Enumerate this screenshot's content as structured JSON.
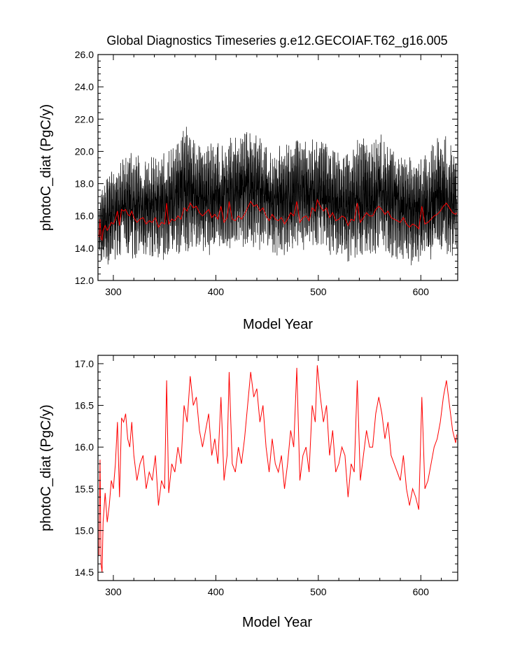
{
  "figure": {
    "title": "Global Diagnostics Timeseries g.e12.GECOIAF.T62_g16.005"
  },
  "colors": {
    "monthly": "#000000",
    "annual": "#ff0000",
    "axis": "#000000"
  },
  "chart_data": [
    {
      "type": "line",
      "title": "Global Diagnostics Timeseries g.e12.GECOIAF.T62_g16.005",
      "xlabel": "Model Year",
      "ylabel": "photoC_diat (PgC/y)",
      "xlim": [
        285,
        636
      ],
      "ylim": [
        12.0,
        26.0
      ],
      "xticks": [
        300,
        400,
        500,
        600
      ],
      "xtick_labels": [
        "300",
        "400",
        "500",
        "600"
      ],
      "yticks": [
        12.0,
        14.0,
        16.0,
        18.0,
        20.0,
        22.0,
        24.0,
        26.0
      ],
      "ytick_labels": [
        "12.0",
        "14.0",
        "16.0",
        "18.0",
        "20.0",
        "22.0",
        "24.0",
        "26.0"
      ],
      "grid": false,
      "legend": "none",
      "series": [
        {
          "style": "monthly seasonal cycle, black",
          "x": [
            286,
            290,
            295,
            300,
            305,
            310,
            315,
            320,
            325,
            330,
            335,
            340,
            345,
            350,
            355,
            360,
            365,
            370,
            375,
            380,
            385,
            390,
            395,
            400,
            405,
            410,
            415,
            420,
            425,
            430,
            435,
            440,
            445,
            450,
            455,
            460,
            465,
            470,
            475,
            480,
            485,
            490,
            495,
            500,
            505,
            510,
            515,
            520,
            525,
            530,
            535,
            540,
            545,
            550,
            555,
            560,
            565,
            570,
            575,
            580,
            585,
            590,
            595,
            600,
            605,
            610,
            615,
            620,
            625,
            630,
            635
          ],
          "y_min": [
            12.8,
            12.7,
            13.0,
            13.2,
            13.3,
            13.4,
            13.3,
            13.2,
            13.4,
            13.1,
            13.0,
            13.3,
            13.4,
            13.2,
            13.3,
            13.4,
            13.6,
            13.5,
            13.8,
            13.7,
            13.6,
            13.5,
            13.6,
            13.8,
            13.7,
            13.6,
            13.5,
            13.7,
            13.8,
            13.9,
            13.8,
            13.7,
            13.6,
            13.7,
            13.5,
            13.4,
            13.6,
            13.5,
            13.7,
            13.8,
            13.6,
            13.7,
            13.8,
            13.9,
            13.7,
            13.6,
            13.5,
            13.4,
            13.2,
            13.1,
            13.3,
            13.4,
            13.5,
            13.3,
            13.4,
            13.6,
            13.5,
            13.3,
            13.2,
            13.1,
            12.9,
            12.8,
            12.9,
            12.9,
            13.1,
            13.0,
            13.2,
            13.4,
            13.5,
            13.3,
            13.6
          ],
          "y_max": [
            17.0,
            18.2,
            18.6,
            19.0,
            19.4,
            19.6,
            20.1,
            20.0,
            19.8,
            19.6,
            20.0,
            19.9,
            19.8,
            20.2,
            20.4,
            20.8,
            21.1,
            21.7,
            21.2,
            20.9,
            20.6,
            20.4,
            20.5,
            20.6,
            20.5,
            20.8,
            21.0,
            20.9,
            21.2,
            21.5,
            21.4,
            21.3,
            21.0,
            20.9,
            20.5,
            20.3,
            20.6,
            20.8,
            21.0,
            21.2,
            20.8,
            21.0,
            21.3,
            21.2,
            21.0,
            20.6,
            20.4,
            20.2,
            20.0,
            20.3,
            20.6,
            20.9,
            21.0,
            20.8,
            21.1,
            21.2,
            20.8,
            20.5,
            20.3,
            20.2,
            20.0,
            19.8,
            20.0,
            19.7,
            20.1,
            20.4,
            20.7,
            21.2,
            20.9,
            20.5,
            20.2
          ]
        },
        {
          "style": "annual mean, red",
          "x": [
            286,
            287,
            288,
            289,
            290,
            292,
            294,
            296,
            298,
            300,
            302,
            304,
            306,
            308,
            310,
            312,
            314,
            316,
            318,
            320,
            323,
            326,
            329,
            332,
            335,
            338,
            341,
            344,
            347,
            350,
            352,
            354,
            357,
            360,
            363,
            366,
            369,
            372,
            375,
            378,
            381,
            384,
            387,
            390,
            393,
            396,
            399,
            402,
            405,
            408,
            411,
            413,
            416,
            419,
            422,
            425,
            428,
            431,
            434,
            437,
            440,
            443,
            446,
            449,
            452,
            455,
            458,
            461,
            464,
            467,
            470,
            473,
            476,
            479,
            482,
            485,
            488,
            491,
            494,
            497,
            499,
            502,
            505,
            508,
            511,
            514,
            517,
            520,
            523,
            526,
            529,
            532,
            535,
            538,
            541,
            544,
            547,
            550,
            553,
            556,
            559,
            562,
            565,
            568,
            571,
            574,
            577,
            580,
            583,
            586,
            589,
            592,
            595,
            598,
            601,
            604,
            607,
            610,
            613,
            616,
            619,
            622,
            625,
            628,
            631,
            634,
            635
          ],
          "y": [
            14.7,
            15.8,
            14.6,
            14.5,
            15.1,
            15.4,
            15.1,
            15.3,
            15.6,
            15.5,
            15.8,
            16.3,
            15.4,
            16.4,
            16.3,
            16.4,
            16.1,
            16.0,
            16.3,
            15.9,
            15.6,
            15.8,
            15.9,
            15.5,
            15.7,
            15.6,
            15.9,
            15.3,
            15.6,
            15.5,
            16.8,
            15.5,
            15.8,
            15.7,
            16.0,
            15.8,
            16.5,
            16.3,
            16.8,
            16.5,
            16.6,
            16.2,
            16.0,
            16.2,
            16.4,
            15.9,
            16.1,
            15.8,
            16.6,
            15.6,
            15.9,
            16.9,
            15.8,
            15.7,
            16.0,
            15.8,
            16.1,
            16.5,
            16.9,
            16.6,
            16.7,
            16.3,
            16.5,
            16.0,
            15.7,
            16.1,
            15.8,
            15.7,
            15.9,
            15.5,
            15.8,
            16.2,
            16.0,
            16.9,
            15.6,
            15.9,
            16.0,
            15.7,
            16.5,
            16.3,
            17.0,
            16.6,
            16.3,
            16.5,
            15.9,
            16.2,
            15.7,
            15.8,
            16.0,
            15.9,
            15.4,
            15.8,
            15.7,
            16.8,
            15.6,
            15.9,
            16.2,
            16.0,
            16.0,
            16.4,
            16.6,
            16.4,
            16.1,
            16.3,
            15.9,
            15.8,
            15.7,
            15.6,
            15.9,
            15.5,
            15.3,
            15.5,
            15.4,
            15.2,
            16.6,
            15.5,
            15.6,
            15.8,
            16.0,
            16.1,
            16.3,
            16.6,
            16.8,
            16.5,
            16.2,
            16.1,
            16.2
          ]
        }
      ]
    },
    {
      "type": "line",
      "title": "",
      "xlabel": "Model Year",
      "ylabel": "photoC_diat (PgC/y)",
      "xlim": [
        285,
        636
      ],
      "ylim": [
        14.4,
        17.1
      ],
      "xticks": [
        300,
        400,
        500,
        600
      ],
      "xtick_labels": [
        "300",
        "400",
        "500",
        "600"
      ],
      "yticks": [
        14.5,
        15.0,
        15.5,
        16.0,
        16.5,
        17.0
      ],
      "ytick_labels": [
        "14.5",
        "15.0",
        "15.5",
        "16.0",
        "16.5",
        "17.0"
      ],
      "grid": false,
      "legend": "none",
      "series": [
        {
          "style": "annual mean, red",
          "x": [
            286,
            287,
            288,
            289,
            290,
            292,
            294,
            296,
            298,
            300,
            302,
            304,
            306,
            308,
            310,
            312,
            314,
            316,
            318,
            320,
            323,
            326,
            329,
            332,
            335,
            338,
            341,
            344,
            347,
            350,
            352,
            354,
            357,
            360,
            363,
            366,
            369,
            372,
            375,
            378,
            381,
            384,
            387,
            390,
            393,
            396,
            399,
            402,
            405,
            408,
            411,
            413,
            416,
            419,
            422,
            425,
            428,
            431,
            434,
            437,
            440,
            443,
            446,
            449,
            452,
            455,
            458,
            461,
            464,
            467,
            470,
            473,
            476,
            479,
            482,
            485,
            488,
            491,
            494,
            497,
            499,
            502,
            505,
            508,
            511,
            514,
            517,
            520,
            523,
            526,
            529,
            532,
            535,
            538,
            541,
            544,
            547,
            550,
            553,
            556,
            559,
            562,
            565,
            568,
            571,
            574,
            577,
            580,
            583,
            586,
            589,
            592,
            595,
            598,
            601,
            604,
            607,
            610,
            613,
            616,
            619,
            622,
            625,
            628,
            631,
            634,
            635
          ],
          "y": [
            14.7,
            15.85,
            14.6,
            14.5,
            15.1,
            15.45,
            15.1,
            15.3,
            15.6,
            15.5,
            15.8,
            16.3,
            15.4,
            16.35,
            16.3,
            16.4,
            16.1,
            16.0,
            16.3,
            15.9,
            15.6,
            15.8,
            15.9,
            15.5,
            15.7,
            15.6,
            15.9,
            15.3,
            15.6,
            15.5,
            16.8,
            15.45,
            15.8,
            15.7,
            16.0,
            15.8,
            16.5,
            16.3,
            16.85,
            16.5,
            16.6,
            16.2,
            16.0,
            16.2,
            16.4,
            15.9,
            16.1,
            15.8,
            16.6,
            15.6,
            15.9,
            16.9,
            15.8,
            15.7,
            16.0,
            15.8,
            16.1,
            16.5,
            16.9,
            16.6,
            16.7,
            16.3,
            16.5,
            16.0,
            15.7,
            16.1,
            15.8,
            15.7,
            15.9,
            15.5,
            15.8,
            16.2,
            16.0,
            16.95,
            15.6,
            15.9,
            16.0,
            15.7,
            16.5,
            16.3,
            16.98,
            16.6,
            16.3,
            16.5,
            15.9,
            16.2,
            15.7,
            15.8,
            16.0,
            15.9,
            15.4,
            15.8,
            15.7,
            16.8,
            15.6,
            15.9,
            16.2,
            16.0,
            16.0,
            16.4,
            16.6,
            16.4,
            16.1,
            16.3,
            15.9,
            15.8,
            15.7,
            15.6,
            15.9,
            15.5,
            15.3,
            15.5,
            15.4,
            15.25,
            16.6,
            15.5,
            15.6,
            15.8,
            16.0,
            16.1,
            16.3,
            16.6,
            16.8,
            16.5,
            16.2,
            16.05,
            16.15
          ]
        }
      ]
    }
  ]
}
